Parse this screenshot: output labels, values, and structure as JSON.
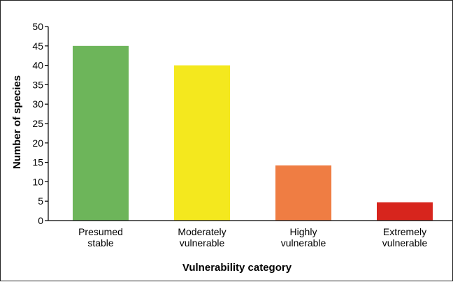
{
  "chart_data": {
    "type": "bar",
    "title": "",
    "xlabel": "Vulnerability category",
    "ylabel": "Number of species",
    "ylim": [
      0,
      50
    ],
    "yticks": [
      0,
      5,
      10,
      15,
      20,
      25,
      30,
      35,
      40,
      45,
      50
    ],
    "grid": false,
    "legend": "none",
    "categories": [
      [
        "Presumed",
        "stable"
      ],
      [
        "Moderately",
        "vulnerable"
      ],
      [
        "Highly",
        "vulnerable"
      ],
      [
        "Extremely",
        "vulnerable"
      ]
    ],
    "values": [
      45,
      40,
      14.2,
      4.7
    ],
    "colors": [
      "#6db55a",
      "#f4e81e",
      "#ef7d43",
      "#d7251d"
    ]
  }
}
